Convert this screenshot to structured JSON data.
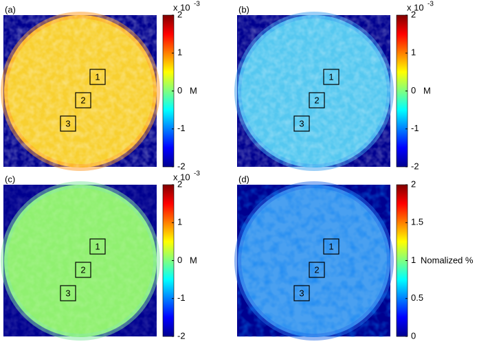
{
  "panels": [
    {
      "label": "(a)",
      "scale": "x 10",
      "exponent": "-3",
      "unit": "M",
      "ticks": [
        "2",
        "1",
        "0",
        "-1",
        "-2"
      ],
      "boxes": [
        "1",
        "2",
        "3"
      ]
    },
    {
      "label": "(b)",
      "scale": "x 10",
      "exponent": "-3",
      "unit": "M",
      "ticks": [
        "2",
        "1",
        "0",
        "-1",
        "-2"
      ],
      "boxes": [
        "1",
        "2",
        "3"
      ]
    },
    {
      "label": "(c)",
      "scale": "x 10",
      "exponent": "-3",
      "unit": "M",
      "ticks": [
        "2",
        "1",
        "0",
        "-1",
        "-2"
      ],
      "boxes": [
        "1",
        "2",
        "3"
      ]
    },
    {
      "label": "(d)",
      "unit": "Nomalized %",
      "ticks": [
        "2",
        "1.5",
        "1",
        "0.5",
        "0"
      ],
      "boxes": [
        "1",
        "2",
        "3"
      ]
    }
  ]
}
